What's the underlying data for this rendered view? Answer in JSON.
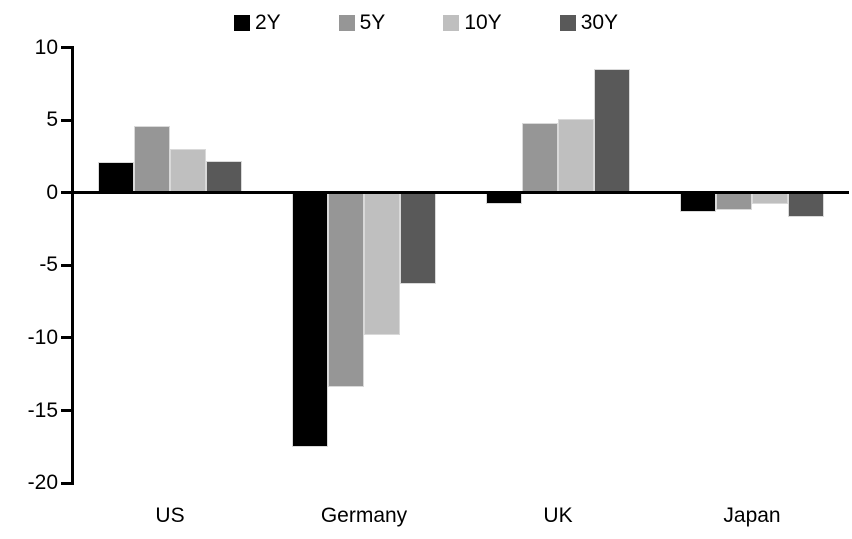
{
  "chart_data": {
    "type": "bar",
    "title": "",
    "categories": [
      "US",
      "Germany",
      "UK",
      "Japan"
    ],
    "series": [
      {
        "name": "2Y",
        "color": "#000000",
        "values": [
          2.1,
          -17.5,
          -0.8,
          -1.3
        ]
      },
      {
        "name": "5Y",
        "color": "#969696",
        "values": [
          4.6,
          -13.4,
          4.8,
          -1.2
        ]
      },
      {
        "name": "10Y",
        "color": "#bfbfbf",
        "values": [
          3.0,
          -9.8,
          5.1,
          -0.8
        ]
      },
      {
        "name": "30Y",
        "color": "#595959",
        "values": [
          2.2,
          -6.3,
          8.5,
          -1.7
        ]
      }
    ],
    "ylim": [
      -20,
      10
    ],
    "yticks": [
      10,
      5,
      0,
      -5,
      -10,
      -15,
      -20
    ],
    "xlabel": "",
    "ylabel": "",
    "grid": false,
    "legend_position": "top"
  },
  "colors": {
    "background": "#ffffff",
    "axis": "#000000",
    "text": "#000000",
    "bar_border": "#d9d9d9"
  }
}
